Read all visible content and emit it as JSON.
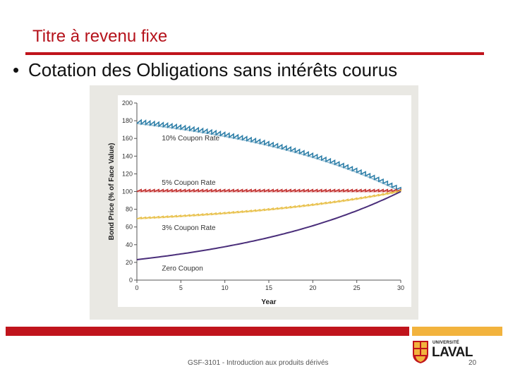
{
  "slide": {
    "title": "Titre à revenu fixe",
    "bullet_symbol": "•",
    "bullet": "Cotation des Obligations sans intérêts courus"
  },
  "footer": {
    "course": "GSF-3101 - Introduction aux produits dérivés",
    "page": "20",
    "logo_small": "UNIVERSITÉ",
    "logo_big": "LAVAL"
  },
  "colors": {
    "accent_red": "#c0141c",
    "accent_gold": "#f2b33d",
    "coupon10": "#2e7fa8",
    "coupon5": "#c2302f",
    "coupon3": "#e8c04a",
    "zero": "#4a2e7a"
  },
  "chart_data": {
    "type": "line",
    "title": "",
    "xlabel": "Year",
    "ylabel": "Bond Price (% of Face Value)",
    "xlim": [
      0,
      30
    ],
    "ylim": [
      0,
      200
    ],
    "xticks": [
      0,
      5,
      10,
      15,
      20,
      25,
      30
    ],
    "yticks": [
      0,
      20,
      40,
      60,
      80,
      100,
      120,
      140,
      160,
      180,
      200
    ],
    "grid": false,
    "series": [
      {
        "name": "10% Coupon Rate",
        "key": "coupon10",
        "color": "#2e7fa8",
        "clean_start": 178,
        "coupon": 10,
        "sawtooth": true
      },
      {
        "name": "5% Coupon Rate",
        "key": "coupon5",
        "color": "#c2302f",
        "clean_start": 100,
        "coupon": 5,
        "sawtooth": true
      },
      {
        "name": "3% Coupon Rate",
        "key": "coupon3",
        "color": "#e8c04a",
        "clean_start": 69,
        "coupon": 3,
        "sawtooth": true
      },
      {
        "name": "Zero Coupon",
        "key": "zero",
        "color": "#4a2e7a",
        "clean_start": 23,
        "coupon": 0,
        "sawtooth": false
      }
    ],
    "yield": 0.05,
    "face": 100,
    "maturity": 30
  }
}
